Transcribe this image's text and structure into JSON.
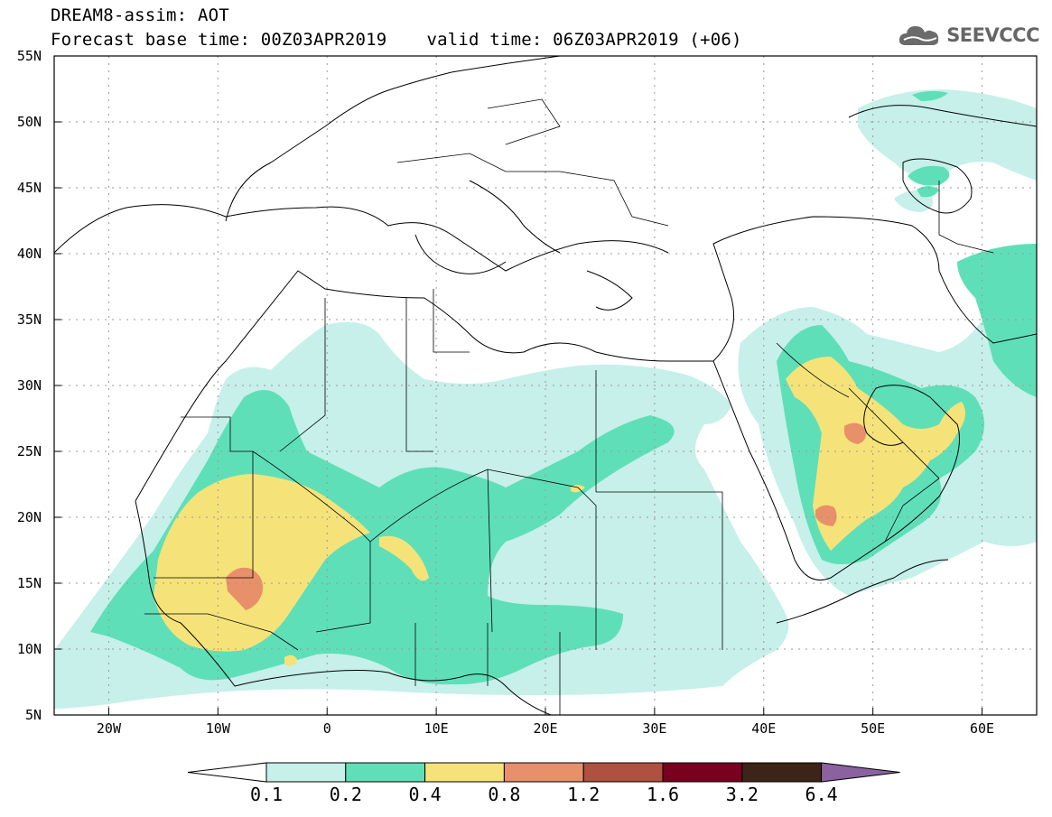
{
  "title": {
    "line1": "DREAM8-assim: AOT",
    "base_time": "Forecast base time: 00Z03APR2019",
    "valid_time": "valid time: 06Z03APR2019 (+06)"
  },
  "logo": {
    "icon": "cloud-icon",
    "text": "SEEVCCC"
  },
  "map": {
    "lat_ticks": [
      "55N",
      "50N",
      "45N",
      "40N",
      "35N",
      "30N",
      "25N",
      "20N",
      "15N",
      "10N",
      "5N"
    ],
    "lon_ticks": [
      "20W",
      "10W",
      "0",
      "10E",
      "20E",
      "30E",
      "40E",
      "50E",
      "60E"
    ],
    "lat_range": [
      5,
      55
    ],
    "lon_range": [
      -25,
      65
    ],
    "grid": true
  },
  "colorbar": {
    "labels": [
      "0.1",
      "0.2",
      "0.4",
      "0.8",
      "1.2",
      "1.6",
      "3.2",
      "6.4"
    ],
    "colors": [
      "#ffffff",
      "#c6f0e9",
      "#5fdfb8",
      "#f5e37a",
      "#e8906a",
      "#b05040",
      "#7a0020",
      "#3d2418",
      "#8a62a0"
    ]
  }
}
